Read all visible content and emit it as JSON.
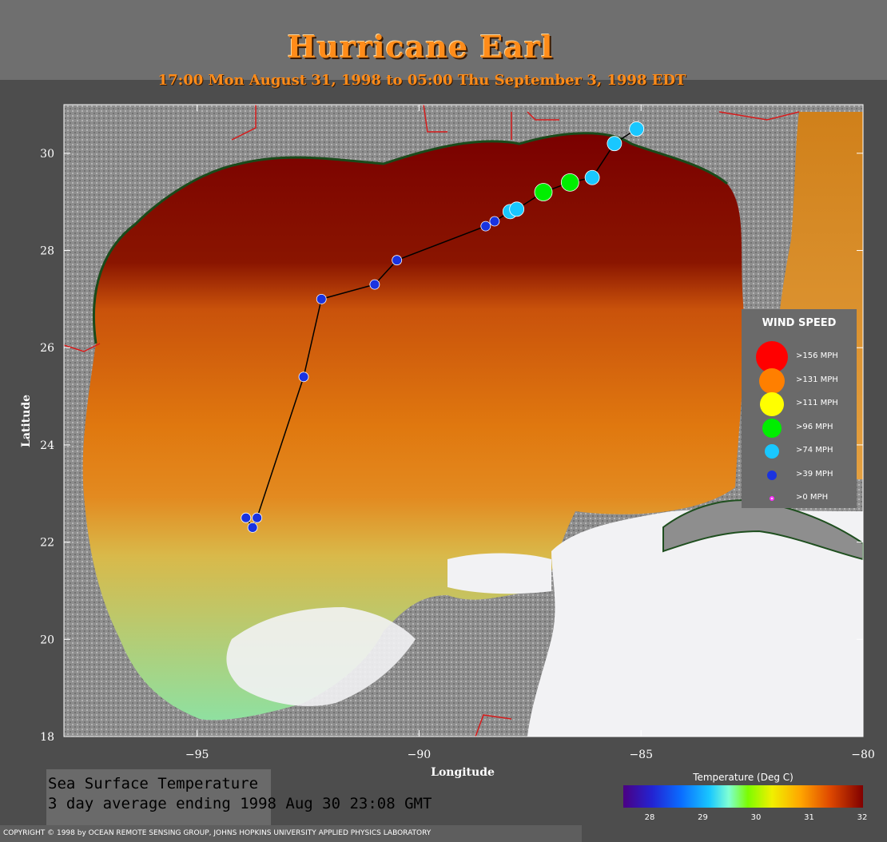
{
  "header": {
    "title": "Hurricane Earl",
    "subtitle": "17:00 Mon August 31, 1998 to 05:00 Thu September  3, 1998  EDT"
  },
  "map": {
    "x_axis": {
      "label": "Longitude",
      "range": [
        -98,
        -80
      ],
      "ticks": [
        "−95",
        "−90",
        "−85",
        "−80"
      ]
    },
    "y_axis": {
      "label": "Latitude",
      "range": [
        18,
        31
      ],
      "ticks": [
        "18",
        "20",
        "22",
        "24",
        "26",
        "28",
        "30"
      ]
    },
    "track": [
      {
        "lon": -93.9,
        "lat": 22.5,
        "category": ">39 MPH"
      },
      {
        "lon": -93.75,
        "lat": 22.3,
        "category": ">39 MPH"
      },
      {
        "lon": -93.65,
        "lat": 22.5,
        "category": ">39 MPH"
      },
      {
        "lon": -92.6,
        "lat": 25.4,
        "category": ">39 MPH"
      },
      {
        "lon": -92.2,
        "lat": 27.0,
        "category": ">39 MPH"
      },
      {
        "lon": -91.0,
        "lat": 27.3,
        "category": ">39 MPH"
      },
      {
        "lon": -90.5,
        "lat": 27.8,
        "category": ">39 MPH"
      },
      {
        "lon": -88.5,
        "lat": 28.5,
        "category": ">39 MPH"
      },
      {
        "lon": -88.3,
        "lat": 28.6,
        "category": ">39 MPH"
      },
      {
        "lon": -87.95,
        "lat": 28.8,
        "category": ">74 MPH"
      },
      {
        "lon": -87.8,
        "lat": 28.85,
        "category": ">74 MPH"
      },
      {
        "lon": -87.2,
        "lat": 29.2,
        "category": ">96 MPH"
      },
      {
        "lon": -86.6,
        "lat": 29.4,
        "category": ">96 MPH"
      },
      {
        "lon": -86.1,
        "lat": 29.5,
        "category": ">74 MPH"
      },
      {
        "lon": -85.6,
        "lat": 30.2,
        "category": ">74 MPH"
      },
      {
        "lon": -85.1,
        "lat": 30.5,
        "category": ">74 MPH"
      }
    ]
  },
  "legend": {
    "title": "WIND SPEED",
    "items": [
      {
        "label": ">156 MPH",
        "color": "#ff0000",
        "size": "xl"
      },
      {
        "label": ">131 MPH",
        "color": "#ff7f00",
        "size": "l"
      },
      {
        "label": ">111 MPH",
        "color": "#ffff00",
        "size": "m"
      },
      {
        "label": ">96 MPH",
        "color": "#00ee00",
        "size": "s"
      },
      {
        "label": ">74 MPH",
        "color": "#19c7ff",
        "size": "xs"
      },
      {
        "label": ">39 MPH",
        "color": "#1a33e0",
        "size": "xxs"
      },
      {
        "label": ">0 MPH",
        "color": "#ff33ff",
        "size": "dot"
      }
    ]
  },
  "caption": {
    "line1": "Sea Surface Temperature",
    "line2": "3 day average ending 1998 Aug 30 23:08 GMT"
  },
  "colorbar": {
    "title": "Temperature (Deg C)",
    "ticks": [
      "28",
      "29",
      "30",
      "31",
      "32"
    ],
    "colors": [
      "#4b0082",
      "#2323d2",
      "#0a6cff",
      "#19c7ff",
      "#7fffd4",
      "#7cfc00",
      "#f0f000",
      "#ffa500",
      "#e04a00",
      "#800000"
    ]
  },
  "copyright": "COPYRIGHT © 1998 by OCEAN REMOTE SENSING GROUP, JOHNS HOPKINS UNIVERSITY APPLIED PHYSICS LABORATORY"
}
